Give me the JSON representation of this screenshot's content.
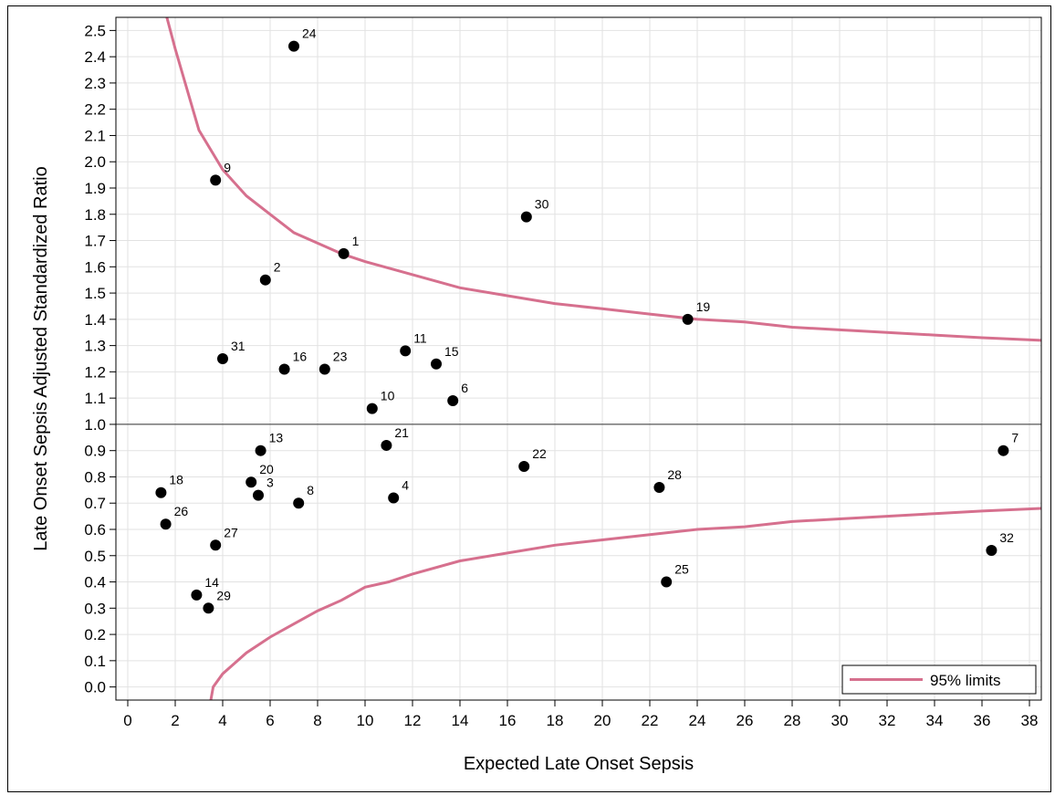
{
  "chart_data": {
    "type": "scatter",
    "xlabel": "Expected Late Onset Sepsis",
    "ylabel": "Late Onset Sepsis Adjusted Standardized Ratio",
    "xlim": [
      -0.5,
      38.5
    ],
    "ylim": [
      -0.05,
      2.55
    ],
    "xticks": [
      0,
      2,
      4,
      6,
      8,
      10,
      12,
      14,
      16,
      18,
      20,
      22,
      24,
      26,
      28,
      30,
      32,
      34,
      36,
      38
    ],
    "yticks": [
      "0.0",
      "0.1",
      "0.2",
      "0.3",
      "0.4",
      "0.5",
      "0.6",
      "0.7",
      "0.8",
      "0.9",
      "1.0",
      "1.1",
      "1.2",
      "1.3",
      "1.4",
      "1.5",
      "1.6",
      "1.7",
      "1.8",
      "1.9",
      "2.0",
      "2.1",
      "2.2",
      "2.3",
      "2.4",
      "2.5"
    ],
    "grid": true,
    "reference_line_y": 1.0,
    "legend": {
      "position": "bottom-right",
      "entries": [
        {
          "label": "95% limits",
          "color": "#d6708e"
        }
      ]
    },
    "points": [
      {
        "label": "1",
        "x": 9.1,
        "y": 1.65
      },
      {
        "label": "2",
        "x": 5.8,
        "y": 1.55
      },
      {
        "label": "3",
        "x": 5.5,
        "y": 0.73
      },
      {
        "label": "4",
        "x": 11.2,
        "y": 0.72
      },
      {
        "label": "6",
        "x": 13.7,
        "y": 1.09
      },
      {
        "label": "7",
        "x": 36.9,
        "y": 0.9
      },
      {
        "label": "8",
        "x": 7.2,
        "y": 0.7
      },
      {
        "label": "9",
        "x": 3.7,
        "y": 1.93
      },
      {
        "label": "10",
        "x": 10.3,
        "y": 1.06
      },
      {
        "label": "11",
        "x": 11.7,
        "y": 1.28
      },
      {
        "label": "13",
        "x": 5.6,
        "y": 0.9
      },
      {
        "label": "14",
        "x": 2.9,
        "y": 0.35
      },
      {
        "label": "15",
        "x": 13.0,
        "y": 1.23
      },
      {
        "label": "16",
        "x": 6.6,
        "y": 1.21
      },
      {
        "label": "18",
        "x": 1.4,
        "y": 0.74
      },
      {
        "label": "19",
        "x": 23.6,
        "y": 1.4
      },
      {
        "label": "20",
        "x": 5.2,
        "y": 0.78
      },
      {
        "label": "21",
        "x": 10.9,
        "y": 0.92
      },
      {
        "label": "22",
        "x": 16.7,
        "y": 0.84
      },
      {
        "label": "23",
        "x": 8.3,
        "y": 1.21
      },
      {
        "label": "24",
        "x": 7.0,
        "y": 2.44
      },
      {
        "label": "25",
        "x": 22.7,
        "y": 0.4
      },
      {
        "label": "26",
        "x": 1.6,
        "y": 0.62
      },
      {
        "label": "27",
        "x": 3.7,
        "y": 0.54
      },
      {
        "label": "28",
        "x": 22.4,
        "y": 0.76
      },
      {
        "label": "29",
        "x": 3.4,
        "y": 0.3
      },
      {
        "label": "30",
        "x": 16.8,
        "y": 1.79
      },
      {
        "label": "31",
        "x": 4.0,
        "y": 1.25
      },
      {
        "label": "32",
        "x": 36.4,
        "y": 0.52
      }
    ],
    "upper_limit": [
      [
        1.5,
        2.6
      ],
      [
        2.0,
        2.43
      ],
      [
        3.0,
        2.12
      ],
      [
        4.0,
        1.97
      ],
      [
        5.0,
        1.87
      ],
      [
        6.0,
        1.8
      ],
      [
        7.0,
        1.73
      ],
      [
        8.0,
        1.69
      ],
      [
        9.0,
        1.65
      ],
      [
        10.0,
        1.62
      ],
      [
        12.0,
        1.57
      ],
      [
        14.0,
        1.52
      ],
      [
        16.0,
        1.49
      ],
      [
        18.0,
        1.46
      ],
      [
        20.0,
        1.44
      ],
      [
        22.0,
        1.42
      ],
      [
        24.0,
        1.4
      ],
      [
        26.0,
        1.39
      ],
      [
        28.0,
        1.37
      ],
      [
        30.0,
        1.36
      ],
      [
        32.0,
        1.35
      ],
      [
        34.0,
        1.34
      ],
      [
        36.0,
        1.33
      ],
      [
        38.5,
        1.32
      ]
    ],
    "lower_limit": [
      [
        3.5,
        -0.05
      ],
      [
        3.6,
        0.0
      ],
      [
        4.0,
        0.05
      ],
      [
        5.0,
        0.13
      ],
      [
        6.0,
        0.19
      ],
      [
        7.0,
        0.24
      ],
      [
        8.0,
        0.29
      ],
      [
        9.0,
        0.33
      ],
      [
        10.0,
        0.38
      ],
      [
        11.0,
        0.4
      ],
      [
        12.0,
        0.43
      ],
      [
        14.0,
        0.48
      ],
      [
        16.0,
        0.51
      ],
      [
        18.0,
        0.54
      ],
      [
        20.0,
        0.56
      ],
      [
        22.0,
        0.58
      ],
      [
        24.0,
        0.6
      ],
      [
        26.0,
        0.61
      ],
      [
        28.0,
        0.63
      ],
      [
        30.0,
        0.64
      ],
      [
        32.0,
        0.65
      ],
      [
        34.0,
        0.66
      ],
      [
        36.0,
        0.67
      ],
      [
        38.5,
        0.68
      ]
    ]
  }
}
